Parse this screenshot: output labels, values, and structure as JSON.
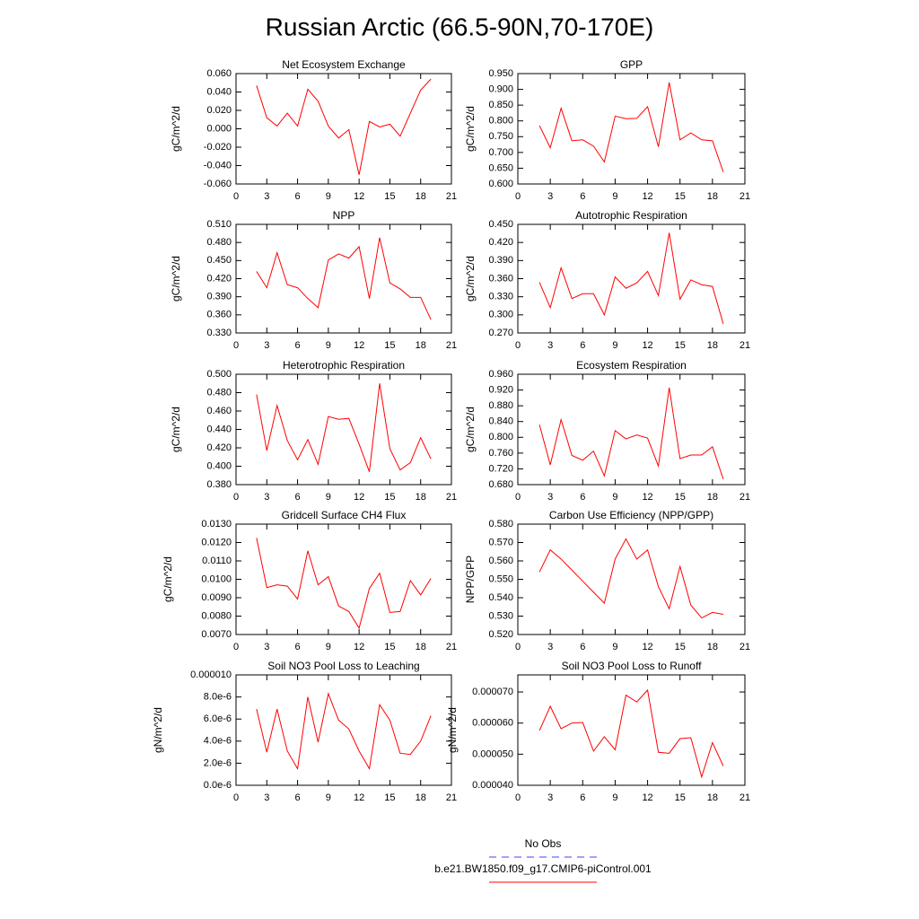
{
  "title": "Russian Arctic (66.5-90N,70-170E)",
  "legend": [
    {
      "name": "No Obs",
      "color": "#4040ff",
      "dash": true
    },
    {
      "name": "b.e21.BW1850.f09_g17.CMIP6-piControl.001",
      "color": "#ff0000",
      "dash": false
    }
  ],
  "chart_data": [
    {
      "type": "line",
      "title": "Net Ecosystem Exchange",
      "y_label": "gC/m^2/d",
      "color": "#ff0000",
      "x": [
        2,
        3,
        4,
        5,
        6,
        7,
        8,
        9,
        10,
        11,
        12,
        13,
        14,
        15,
        16,
        17,
        18,
        19
      ],
      "values": [
        0.047,
        0.012,
        0.003,
        0.017,
        0.003,
        0.043,
        0.03,
        0.003,
        -0.01,
        -0.001,
        -0.05,
        0.008,
        0.002,
        0.005,
        -0.008,
        0.017,
        0.042,
        0.054
      ],
      "xlim": [
        0,
        21
      ],
      "xticks": [
        0,
        3,
        6,
        9,
        12,
        15,
        18,
        21
      ],
      "ylim": [
        -0.06,
        0.06
      ],
      "yticks": [
        {
          "value": -0.06,
          "label": "-0.060"
        },
        {
          "value": -0.04,
          "label": "-0.040"
        },
        {
          "value": -0.02,
          "label": "-0.020"
        },
        {
          "value": 0,
          "label": "0.000"
        },
        {
          "value": 0.02,
          "label": "0.020"
        },
        {
          "value": 0.04,
          "label": "0.040"
        },
        {
          "value": 0.06,
          "label": "0.060"
        }
      ]
    },
    {
      "type": "line",
      "title": "GPP",
      "y_label": "gC/m^2/d",
      "color": "#ff0000",
      "x": [
        2,
        3,
        4,
        5,
        6,
        7,
        8,
        9,
        10,
        11,
        12,
        13,
        14,
        15,
        16,
        17,
        18,
        19
      ],
      "values": [
        0.785,
        0.715,
        0.84,
        0.737,
        0.74,
        0.72,
        0.67,
        0.815,
        0.807,
        0.808,
        0.845,
        0.718,
        0.922,
        0.74,
        0.762,
        0.74,
        0.737,
        0.638
      ],
      "xlim": [
        0,
        21
      ],
      "xticks": [
        0,
        3,
        6,
        9,
        12,
        15,
        18,
        21
      ],
      "ylim": [
        0.6,
        0.95
      ],
      "yticks": [
        {
          "value": 0.6,
          "label": "0.600"
        },
        {
          "value": 0.65,
          "label": "0.650"
        },
        {
          "value": 0.7,
          "label": "0.700"
        },
        {
          "value": 0.75,
          "label": "0.750"
        },
        {
          "value": 0.8,
          "label": "0.800"
        },
        {
          "value": 0.85,
          "label": "0.850"
        },
        {
          "value": 0.9,
          "label": "0.900"
        },
        {
          "value": 0.95,
          "label": "0.950"
        }
      ]
    },
    {
      "type": "line",
      "title": "NPP",
      "y_label": "gC/m^2/d",
      "color": "#ff0000",
      "x": [
        2,
        3,
        4,
        5,
        6,
        7,
        8,
        9,
        10,
        11,
        12,
        13,
        14,
        15,
        16,
        17,
        18,
        19
      ],
      "values": [
        0.432,
        0.405,
        0.463,
        0.41,
        0.405,
        0.387,
        0.372,
        0.451,
        0.461,
        0.454,
        0.473,
        0.387,
        0.488,
        0.413,
        0.403,
        0.389,
        0.389,
        0.352
      ],
      "xlim": [
        0,
        21
      ],
      "xticks": [
        0,
        3,
        6,
        9,
        12,
        15,
        18,
        21
      ],
      "ylim": [
        0.33,
        0.51
      ],
      "yticks": [
        {
          "value": 0.33,
          "label": "0.330"
        },
        {
          "value": 0.36,
          "label": "0.360"
        },
        {
          "value": 0.39,
          "label": "0.390"
        },
        {
          "value": 0.42,
          "label": "0.420"
        },
        {
          "value": 0.45,
          "label": "0.450"
        },
        {
          "value": 0.48,
          "label": "0.480"
        },
        {
          "value": 0.51,
          "label": "0.510"
        }
      ]
    },
    {
      "type": "line",
      "title": "Autotrophic Respiration",
      "y_label": "gC/m^2/d",
      "color": "#ff0000",
      "x": [
        2,
        3,
        4,
        5,
        6,
        7,
        8,
        9,
        10,
        11,
        12,
        13,
        14,
        15,
        16,
        17,
        18,
        19
      ],
      "values": [
        0.354,
        0.312,
        0.378,
        0.327,
        0.335,
        0.335,
        0.3,
        0.363,
        0.344,
        0.353,
        0.372,
        0.332,
        0.436,
        0.326,
        0.358,
        0.35,
        0.347,
        0.285
      ],
      "xlim": [
        0,
        21
      ],
      "xticks": [
        0,
        3,
        6,
        9,
        12,
        15,
        18,
        21
      ],
      "ylim": [
        0.27,
        0.45
      ],
      "yticks": [
        {
          "value": 0.27,
          "label": "0.270"
        },
        {
          "value": 0.3,
          "label": "0.300"
        },
        {
          "value": 0.33,
          "label": "0.330"
        },
        {
          "value": 0.36,
          "label": "0.360"
        },
        {
          "value": 0.39,
          "label": "0.390"
        },
        {
          "value": 0.42,
          "label": "0.420"
        },
        {
          "value": 0.45,
          "label": "0.450"
        }
      ]
    },
    {
      "type": "line",
      "title": "Heterotrophic Respiration",
      "y_label": "gC/m^2/d",
      "color": "#ff0000",
      "x": [
        2,
        3,
        4,
        5,
        6,
        7,
        8,
        9,
        10,
        11,
        12,
        13,
        14,
        15,
        16,
        17,
        18,
        19
      ],
      "values": [
        0.478,
        0.417,
        0.466,
        0.428,
        0.407,
        0.429,
        0.402,
        0.454,
        0.451,
        0.452,
        0.424,
        0.394,
        0.49,
        0.419,
        0.396,
        0.404,
        0.431,
        0.408
      ],
      "xlim": [
        0,
        21
      ],
      "xticks": [
        0,
        3,
        6,
        9,
        12,
        15,
        18,
        21
      ],
      "ylim": [
        0.38,
        0.5
      ],
      "yticks": [
        {
          "value": 0.38,
          "label": "0.380"
        },
        {
          "value": 0.4,
          "label": "0.400"
        },
        {
          "value": 0.42,
          "label": "0.420"
        },
        {
          "value": 0.44,
          "label": "0.440"
        },
        {
          "value": 0.46,
          "label": "0.460"
        },
        {
          "value": 0.48,
          "label": "0.480"
        },
        {
          "value": 0.5,
          "label": "0.500"
        }
      ]
    },
    {
      "type": "line",
      "title": "Ecosystem Respiration",
      "y_label": "gC/m^2/d",
      "color": "#ff0000",
      "x": [
        2,
        3,
        4,
        5,
        6,
        7,
        8,
        9,
        10,
        11,
        12,
        13,
        14,
        15,
        16,
        17,
        18,
        19
      ],
      "values": [
        0.832,
        0.73,
        0.845,
        0.754,
        0.742,
        0.765,
        0.702,
        0.817,
        0.796,
        0.806,
        0.798,
        0.727,
        0.926,
        0.746,
        0.755,
        0.755,
        0.776,
        0.694
      ],
      "xlim": [
        0,
        21
      ],
      "xticks": [
        0,
        3,
        6,
        9,
        12,
        15,
        18,
        21
      ],
      "ylim": [
        0.68,
        0.96
      ],
      "yticks": [
        {
          "value": 0.68,
          "label": "0.680"
        },
        {
          "value": 0.72,
          "label": "0.720"
        },
        {
          "value": 0.76,
          "label": "0.760"
        },
        {
          "value": 0.8,
          "label": "0.800"
        },
        {
          "value": 0.84,
          "label": "0.840"
        },
        {
          "value": 0.88,
          "label": "0.880"
        },
        {
          "value": 0.92,
          "label": "0.920"
        },
        {
          "value": 0.96,
          "label": "0.960"
        }
      ]
    },
    {
      "type": "line",
      "title": "Gridcell Surface CH4 Flux",
      "y_label": "gC/m^2/d",
      "color": "#ff0000",
      "x": [
        2,
        3,
        4,
        5,
        6,
        7,
        8,
        9,
        10,
        11,
        12,
        13,
        14,
        15,
        16,
        17,
        18,
        19
      ],
      "values": [
        0.01225,
        0.00955,
        0.0097,
        0.00963,
        0.00893,
        0.01155,
        0.0097,
        0.01015,
        0.00855,
        0.00825,
        0.00735,
        0.0095,
        0.01033,
        0.0082,
        0.00825,
        0.00993,
        0.00915,
        0.01005
      ],
      "xlim": [
        0,
        21
      ],
      "xticks": [
        0,
        3,
        6,
        9,
        12,
        15,
        18,
        21
      ],
      "ylim": [
        0.007,
        0.013
      ],
      "yticks": [
        {
          "value": 0.007,
          "label": "0.0070"
        },
        {
          "value": 0.008,
          "label": "0.0080"
        },
        {
          "value": 0.009,
          "label": "0.0090"
        },
        {
          "value": 0.01,
          "label": "0.0100"
        },
        {
          "value": 0.011,
          "label": "0.0110"
        },
        {
          "value": 0.012,
          "label": "0.0120"
        },
        {
          "value": 0.013,
          "label": "0.0130"
        }
      ]
    },
    {
      "type": "line",
      "title": "Carbon Use Efficiency (NPP/GPP)",
      "y_label": "NPP/GPP",
      "color": "#ff0000",
      "x": [
        2,
        3,
        4,
        5,
        6,
        7,
        8,
        9,
        10,
        11,
        12,
        13,
        14,
        15,
        16,
        17,
        18,
        19
      ],
      "values": [
        0.554,
        0.566,
        0.561,
        0.555,
        0.549,
        0.543,
        0.537,
        0.561,
        0.572,
        0.561,
        0.566,
        0.546,
        0.534,
        0.557,
        0.536,
        0.529,
        0.532,
        0.531
      ],
      "xlim": [
        0,
        21
      ],
      "xticks": [
        0,
        3,
        6,
        9,
        12,
        15,
        18,
        21
      ],
      "ylim": [
        0.52,
        0.58
      ],
      "yticks": [
        {
          "value": 0.52,
          "label": "0.520"
        },
        {
          "value": 0.53,
          "label": "0.530"
        },
        {
          "value": 0.54,
          "label": "0.540"
        },
        {
          "value": 0.55,
          "label": "0.550"
        },
        {
          "value": 0.56,
          "label": "0.560"
        },
        {
          "value": 0.57,
          "label": "0.570"
        },
        {
          "value": 0.58,
          "label": "0.580"
        }
      ]
    },
    {
      "type": "line",
      "title": "Soil NO3 Pool Loss to Leaching",
      "y_label": "gN/m^2/d",
      "color": "#ff0000",
      "x": [
        2,
        3,
        4,
        5,
        6,
        7,
        8,
        9,
        10,
        11,
        12,
        13,
        14,
        15,
        16,
        17,
        18,
        19
      ],
      "values": [
        6.9e-06,
        3e-06,
        6.9e-06,
        3.1e-06,
        1.5e-06,
        8e-06,
        3.9e-06,
        8.3e-06,
        5.9e-06,
        5.1e-06,
        3.1e-06,
        1.5e-06,
        7.3e-06,
        5.9e-06,
        2.9e-06,
        2.8e-06,
        4e-06,
        6.3e-06
      ],
      "xlim": [
        0,
        21
      ],
      "xticks": [
        0,
        3,
        6,
        9,
        12,
        15,
        18,
        21
      ],
      "ylim": [
        0,
        1e-05
      ],
      "yticks": [
        {
          "value": 0,
          "label": "0.0e-6"
        },
        {
          "value": 2e-06,
          "label": "2.0e-6"
        },
        {
          "value": 4e-06,
          "label": "4.0e-6"
        },
        {
          "value": 6e-06,
          "label": "6.0e-6"
        },
        {
          "value": 8e-06,
          "label": "8.0e-6"
        },
        {
          "value": 1e-05,
          "label": "0.000010"
        }
      ]
    },
    {
      "type": "line",
      "title": "Soil NO3 Pool Loss to Runoff",
      "y_label": "gN/m^2/d",
      "color": "#ff0000",
      "x": [
        2,
        3,
        4,
        5,
        6,
        7,
        8,
        9,
        10,
        11,
        12,
        13,
        14,
        15,
        16,
        17,
        18,
        19
      ],
      "values": [
        5.76e-05,
        6.54e-05,
        5.82e-05,
        6e-05,
        6.02e-05,
        5.1e-05,
        5.56e-05,
        5.14e-05,
        6.9e-05,
        6.68e-05,
        7.06e-05,
        5.06e-05,
        5.03e-05,
        5.5e-05,
        5.53e-05,
        4.27e-05,
        5.37e-05,
        4.62e-05
      ],
      "xlim": [
        0,
        21
      ],
      "xticks": [
        0,
        3,
        6,
        9,
        12,
        15,
        18,
        21
      ],
      "ylim": [
        4e-05,
        7.55e-05
      ],
      "yticks": [
        {
          "value": 4e-05,
          "label": "0.000040"
        },
        {
          "value": 5e-05,
          "label": "0.000050"
        },
        {
          "value": 6e-05,
          "label": "0.000060"
        },
        {
          "value": 7e-05,
          "label": "0.000070"
        }
      ]
    }
  ]
}
